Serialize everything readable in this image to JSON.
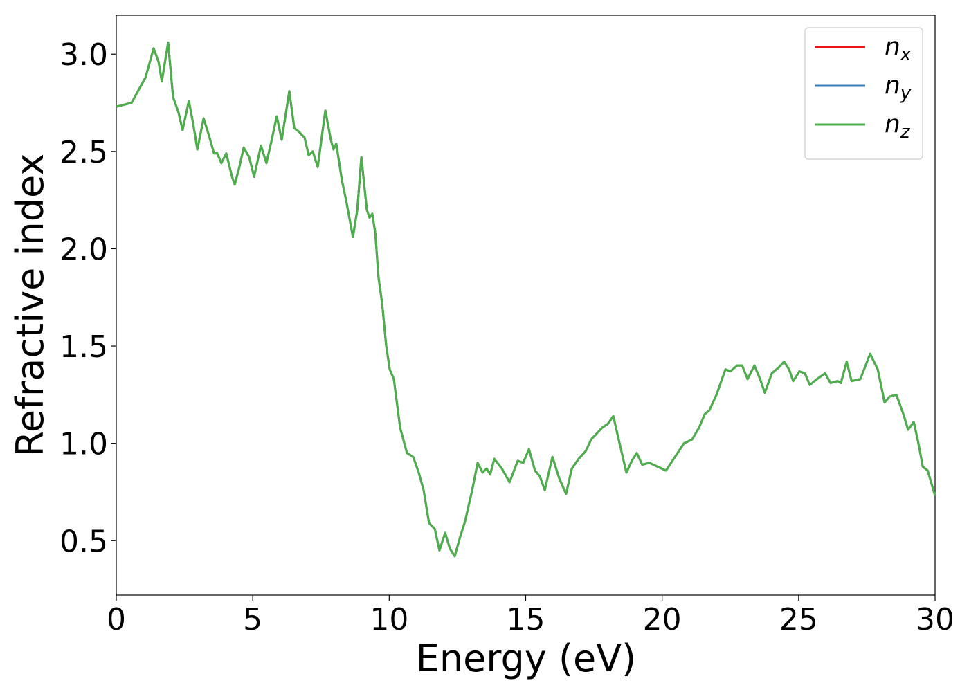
{
  "chart_data": {
    "type": "line",
    "xlabel": "Energy (eV)",
    "ylabel": "Refractive index",
    "xlim": [
      0,
      30
    ],
    "ylim": [
      0.22,
      3.2
    ],
    "xticks": [
      0,
      5,
      10,
      15,
      20,
      25,
      30
    ],
    "yticks": [
      0.5,
      {
        "value": 1,
        "label": "1.0"
      },
      1.5,
      {
        "value": 2,
        "label": "2.0"
      },
      2.5,
      {
        "value": 3,
        "label": "3.0"
      }
    ],
    "grid": false,
    "legend": "upper right",
    "x": [
      0,
      0.56,
      1.07,
      1.37,
      1.55,
      1.67,
      1.9,
      2.08,
      2.28,
      2.43,
      2.66,
      2.82,
      2.97,
      3.2,
      3.4,
      3.58,
      3.7,
      3.85,
      4.03,
      4.24,
      4.34,
      4.51,
      4.67,
      4.87,
      5.05,
      5.3,
      5.5,
      5.68,
      5.88,
      6.06,
      6.34,
      6.52,
      6.7,
      6.9,
      7.05,
      7.2,
      7.38,
      7.66,
      7.86,
      7.96,
      8.06,
      8.27,
      8.42,
      8.67,
      8.83,
      8.98,
      9.18,
      9.28,
      9.38,
      9.49,
      9.61,
      9.74,
      9.89,
      10.02,
      10.17,
      10.4,
      10.65,
      10.88,
      11.08,
      11.26,
      11.46,
      11.67,
      11.84,
      12.05,
      12.22,
      12.4,
      12.6,
      12.78,
      13.04,
      13.24,
      13.42,
      13.57,
      13.7,
      13.85,
      14.13,
      14.41,
      14.71,
      14.91,
      15.12,
      15.34,
      15.52,
      15.7,
      15.98,
      16.23,
      16.48,
      16.69,
      16.94,
      17.2,
      17.4,
      17.6,
      17.8,
      18.01,
      18.21,
      18.44,
      18.69,
      18.89,
      19.07,
      19.27,
      19.53,
      19.83,
      20.14,
      20.47,
      20.8,
      21.1,
      21.35,
      21.56,
      21.73,
      21.99,
      22.32,
      22.5,
      22.75,
      22.93,
      23.13,
      23.38,
      23.59,
      23.76,
      24.02,
      24.27,
      24.47,
      24.65,
      24.8,
      25.03,
      25.23,
      25.41,
      25.67,
      25.97,
      26.17,
      26.43,
      26.55,
      26.76,
      26.94,
      27.26,
      27.62,
      27.9,
      28.15,
      28.33,
      28.58,
      28.84,
      29.01,
      29.22,
      29.39,
      29.55,
      29.73,
      30
    ],
    "series": [
      {
        "name": "nx",
        "color": "#e41a1c",
        "values": [
          2.73,
          2.75,
          2.88,
          3.03,
          2.96,
          2.86,
          3.06,
          2.78,
          2.7,
          2.61,
          2.76,
          2.64,
          2.51,
          2.67,
          2.58,
          2.49,
          2.49,
          2.44,
          2.49,
          2.37,
          2.33,
          2.42,
          2.52,
          2.47,
          2.37,
          2.53,
          2.44,
          2.55,
          2.68,
          2.56,
          2.81,
          2.62,
          2.6,
          2.57,
          2.48,
          2.5,
          2.42,
          2.71,
          2.56,
          2.51,
          2.54,
          2.35,
          2.25,
          2.06,
          2.2,
          2.47,
          2.2,
          2.16,
          2.18,
          2.08,
          1.85,
          1.72,
          1.5,
          1.38,
          1.33,
          1.08,
          0.95,
          0.93,
          0.85,
          0.76,
          0.59,
          0.56,
          0.45,
          0.54,
          0.46,
          0.42,
          0.52,
          0.6,
          0.76,
          0.9,
          0.85,
          0.87,
          0.84,
          0.92,
          0.87,
          0.8,
          0.91,
          0.9,
          0.97,
          0.86,
          0.83,
          0.76,
          0.93,
          0.82,
          0.74,
          0.87,
          0.92,
          0.96,
          1.02,
          1.05,
          1.08,
          1.1,
          1.14,
          1.0,
          0.85,
          0.91,
          0.95,
          0.89,
          0.9,
          0.88,
          0.86,
          0.93,
          1.0,
          1.02,
          1.08,
          1.15,
          1.17,
          1.25,
          1.38,
          1.37,
          1.4,
          1.4,
          1.33,
          1.4,
          1.33,
          1.26,
          1.36,
          1.39,
          1.42,
          1.38,
          1.32,
          1.37,
          1.36,
          1.3,
          1.33,
          1.36,
          1.31,
          1.32,
          1.31,
          1.42,
          1.32,
          1.33,
          1.46,
          1.38,
          1.21,
          1.24,
          1.25,
          1.15,
          1.07,
          1.11,
          1.0,
          0.88,
          0.86,
          0.73
        ]
      },
      {
        "name": "ny",
        "color": "#377eb8",
        "values": [
          2.73,
          2.75,
          2.88,
          3.03,
          2.96,
          2.86,
          3.06,
          2.78,
          2.7,
          2.61,
          2.76,
          2.64,
          2.51,
          2.67,
          2.58,
          2.49,
          2.49,
          2.44,
          2.49,
          2.37,
          2.33,
          2.42,
          2.52,
          2.47,
          2.37,
          2.53,
          2.44,
          2.55,
          2.68,
          2.56,
          2.81,
          2.62,
          2.6,
          2.57,
          2.48,
          2.5,
          2.42,
          2.71,
          2.56,
          2.51,
          2.54,
          2.35,
          2.25,
          2.06,
          2.2,
          2.47,
          2.2,
          2.16,
          2.18,
          2.08,
          1.85,
          1.72,
          1.5,
          1.38,
          1.33,
          1.08,
          0.95,
          0.93,
          0.85,
          0.76,
          0.59,
          0.56,
          0.45,
          0.54,
          0.46,
          0.42,
          0.52,
          0.6,
          0.76,
          0.9,
          0.85,
          0.87,
          0.84,
          0.92,
          0.87,
          0.8,
          0.91,
          0.9,
          0.97,
          0.86,
          0.83,
          0.76,
          0.93,
          0.82,
          0.74,
          0.87,
          0.92,
          0.96,
          1.02,
          1.05,
          1.08,
          1.1,
          1.14,
          1.0,
          0.85,
          0.91,
          0.95,
          0.89,
          0.9,
          0.88,
          0.86,
          0.93,
          1.0,
          1.02,
          1.08,
          1.15,
          1.17,
          1.25,
          1.38,
          1.37,
          1.4,
          1.4,
          1.33,
          1.4,
          1.33,
          1.26,
          1.36,
          1.39,
          1.42,
          1.38,
          1.32,
          1.37,
          1.36,
          1.3,
          1.33,
          1.36,
          1.31,
          1.32,
          1.31,
          1.42,
          1.32,
          1.33,
          1.46,
          1.38,
          1.21,
          1.24,
          1.25,
          1.15,
          1.07,
          1.11,
          1.0,
          0.88,
          0.86,
          0.73
        ]
      },
      {
        "name": "nz",
        "color": "#4daf4a",
        "values": [
          2.73,
          2.75,
          2.88,
          3.03,
          2.96,
          2.86,
          3.06,
          2.78,
          2.7,
          2.61,
          2.76,
          2.64,
          2.51,
          2.67,
          2.58,
          2.49,
          2.49,
          2.44,
          2.49,
          2.37,
          2.33,
          2.42,
          2.52,
          2.47,
          2.37,
          2.53,
          2.44,
          2.55,
          2.68,
          2.56,
          2.81,
          2.62,
          2.6,
          2.57,
          2.48,
          2.5,
          2.42,
          2.71,
          2.56,
          2.51,
          2.54,
          2.35,
          2.25,
          2.06,
          2.2,
          2.47,
          2.2,
          2.16,
          2.18,
          2.08,
          1.85,
          1.72,
          1.5,
          1.38,
          1.33,
          1.08,
          0.95,
          0.93,
          0.85,
          0.76,
          0.59,
          0.56,
          0.45,
          0.54,
          0.46,
          0.42,
          0.52,
          0.6,
          0.76,
          0.9,
          0.85,
          0.87,
          0.84,
          0.92,
          0.87,
          0.8,
          0.91,
          0.9,
          0.97,
          0.86,
          0.83,
          0.76,
          0.93,
          0.82,
          0.74,
          0.87,
          0.92,
          0.96,
          1.02,
          1.05,
          1.08,
          1.1,
          1.14,
          1.0,
          0.85,
          0.91,
          0.95,
          0.89,
          0.9,
          0.88,
          0.86,
          0.93,
          1.0,
          1.02,
          1.08,
          1.15,
          1.17,
          1.25,
          1.38,
          1.37,
          1.4,
          1.4,
          1.33,
          1.4,
          1.33,
          1.26,
          1.36,
          1.39,
          1.42,
          1.38,
          1.32,
          1.37,
          1.36,
          1.3,
          1.33,
          1.36,
          1.31,
          1.32,
          1.31,
          1.42,
          1.32,
          1.33,
          1.46,
          1.38,
          1.21,
          1.24,
          1.25,
          1.15,
          1.07,
          1.11,
          1.0,
          0.88,
          0.86,
          0.73
        ]
      }
    ]
  }
}
